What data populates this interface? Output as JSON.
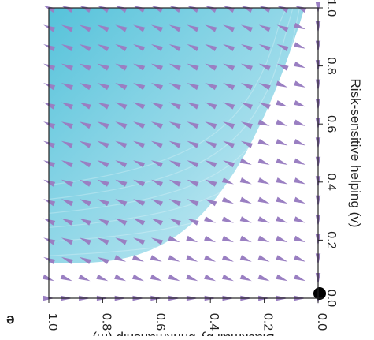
{
  "panel_label": "e",
  "colors": {
    "arrow": "#9a7fc2",
    "region_fill": "#5cc3db",
    "axis": "#222222",
    "background": "#ffffff",
    "equilibrium_dot": "#000000"
  },
  "chart_data": {
    "type": "quiver",
    "orientation": "rotated-180",
    "title": "",
    "xlabel": "Risk-sensitive helping (v)",
    "ylabel": "Blackmail by brinkmanship (m)",
    "xlim": [
      0,
      1
    ],
    "ylim": [
      0,
      1
    ],
    "xticks": [
      "0.0",
      "0.2",
      "0.4",
      "0.6",
      "0.8",
      "1.0"
    ],
    "yticks": [
      "0.0",
      "0.2",
      "0.4",
      "0.6",
      "0.8",
      "1.0"
    ],
    "grid": false,
    "legend": "none",
    "shaded_region": {
      "description": "basin with gradient fill",
      "boundary_v_at_m0": 0.12,
      "boundary_m_at_v0": 0.05,
      "covers": "high v and high m corner"
    },
    "equilibrium_point": {
      "v": 0.0,
      "m": 0.0
    },
    "grid_spacing": 0.0667
  }
}
